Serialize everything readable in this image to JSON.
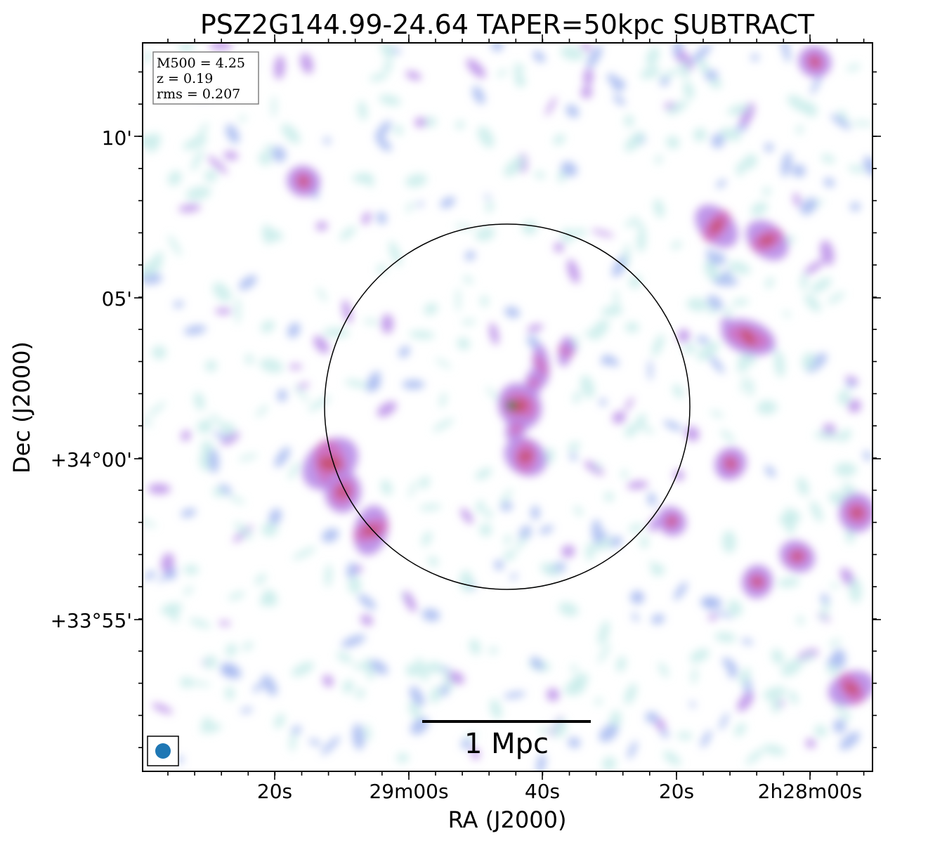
{
  "title": "PSZ2G144.99-24.64 TAPER=50kpc SUBTRACT",
  "info_box": {
    "lines": [
      "M500 = 4.25",
      "z = 0.19",
      "rms = 0.207"
    ]
  },
  "axes": {
    "xlabel": "RA (J2000)",
    "ylabel": "Dec (J2000)",
    "x_ticks": [
      "20s",
      "29m00s",
      "40s",
      "20s",
      "2h28m00s"
    ],
    "y_ticks": [
      "10'",
      "05'",
      "+34°00'",
      "+33°55'"
    ]
  },
  "scale_bar": {
    "label": "1 Mpc"
  },
  "beam_marker": {
    "color": "#1f77b4"
  },
  "colormap": [
    "#c8ecea",
    "#a6b8f0",
    "#b88ce8",
    "#d070c0",
    "#c84e6a",
    "#2e7d32"
  ],
  "frame_color": "#000000",
  "circle_color": "#000000"
}
